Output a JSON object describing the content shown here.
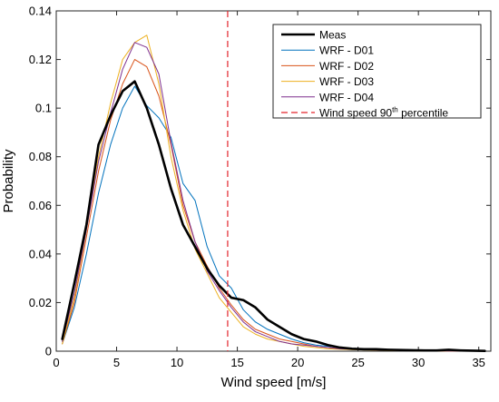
{
  "chart_data": {
    "type": "line",
    "title": "",
    "xlabel": "Wind speed [m/s]",
    "ylabel": "Probability",
    "xlim": [
      0,
      36
    ],
    "ylim": [
      0,
      0.14
    ],
    "xticks": [
      0,
      5,
      10,
      15,
      20,
      25,
      30,
      35
    ],
    "yticks": [
      0,
      0.02,
      0.04,
      0.06,
      0.08,
      0.1,
      0.12,
      0.14
    ],
    "xtick_labels": [
      "0",
      "5",
      "10",
      "15",
      "20",
      "25",
      "30",
      "35"
    ],
    "ytick_labels": [
      "0",
      "0.02",
      "0.04",
      "0.06",
      "0.08",
      "0.1",
      "0.12",
      "0.14"
    ],
    "grid": false,
    "legend_position": "top-right",
    "series": [
      {
        "name": "Meas",
        "color": "#000000",
        "style": "solid",
        "width": "thick",
        "x": [
          0.5,
          1.5,
          2.5,
          3.5,
          4.5,
          5.5,
          6.5,
          7.5,
          8.5,
          9.5,
          10.5,
          11.5,
          12.5,
          13.5,
          14.5,
          15.5,
          16.5,
          17.5,
          18.5,
          19.5,
          20.5,
          21.5,
          22.5,
          23.5,
          24.5,
          25.5,
          26.5,
          27.5,
          28.5,
          29.5,
          30.5,
          31.5,
          32.5,
          33.5,
          34.5,
          35.5
        ],
        "values": [
          0.005,
          0.028,
          0.052,
          0.085,
          0.097,
          0.107,
          0.111,
          0.1,
          0.085,
          0.067,
          0.052,
          0.043,
          0.034,
          0.027,
          0.022,
          0.021,
          0.018,
          0.013,
          0.01,
          0.007,
          0.005,
          0.004,
          0.0025,
          0.0015,
          0.001,
          0.0008,
          0.0008,
          0.0006,
          0.0005,
          0.0004,
          0.0003,
          0.0003,
          0.0006,
          0.0003,
          0.0002,
          0.0001
        ]
      },
      {
        "name": "WRF - D01",
        "color": "#0072BD",
        "style": "solid",
        "width": "thin",
        "x": [
          0.5,
          1.5,
          2.5,
          3.5,
          4.5,
          5.5,
          6.5,
          7.5,
          8.5,
          9.5,
          10.5,
          11.5,
          12.5,
          13.5,
          14.5,
          15.5,
          16.5,
          17.5,
          18.5,
          19.5,
          20.5,
          21.5,
          22.5,
          23.5,
          24.5,
          25.5,
          26.5,
          27.5,
          28.5,
          29.5,
          30.5,
          31.5,
          32.5,
          33.5,
          34.5,
          35.5
        ],
        "values": [
          0.003,
          0.018,
          0.04,
          0.065,
          0.085,
          0.1,
          0.109,
          0.101,
          0.096,
          0.088,
          0.069,
          0.062,
          0.043,
          0.031,
          0.026,
          0.017,
          0.012,
          0.009,
          0.007,
          0.005,
          0.0035,
          0.0025,
          0.002,
          0.0015,
          0.001,
          0.0008,
          0.0006,
          0.0005,
          0.0004,
          0.0003,
          0.0003,
          0.0002,
          0.0002,
          0.0002,
          0.0001,
          0.0001
        ]
      },
      {
        "name": "WRF - D02",
        "color": "#D95319",
        "style": "solid",
        "width": "thin",
        "x": [
          0.5,
          1.5,
          2.5,
          3.5,
          4.5,
          5.5,
          6.5,
          7.5,
          8.5,
          9.5,
          10.5,
          11.5,
          12.5,
          13.5,
          14.5,
          15.5,
          16.5,
          17.5,
          18.5,
          19.5,
          20.5,
          21.5,
          22.5,
          23.5,
          24.5,
          25.5,
          26.5,
          27.5,
          28.5,
          29.5,
          30.5,
          31.5,
          32.5,
          33.5,
          34.5,
          35.5
        ],
        "values": [
          0.003,
          0.02,
          0.047,
          0.074,
          0.095,
          0.11,
          0.12,
          0.117,
          0.105,
          0.085,
          0.06,
          0.045,
          0.035,
          0.026,
          0.019,
          0.013,
          0.009,
          0.007,
          0.005,
          0.004,
          0.003,
          0.002,
          0.0015,
          0.001,
          0.0008,
          0.0006,
          0.0005,
          0.0004,
          0.0003,
          0.0002,
          0.0002,
          0.0002,
          0.0001,
          0.0001,
          0.0001,
          0.0001
        ]
      },
      {
        "name": "WRF - D03",
        "color": "#EDB120",
        "style": "solid",
        "width": "thin",
        "x": [
          0.5,
          1.5,
          2.5,
          3.5,
          4.5,
          5.5,
          6.5,
          7.5,
          8.5,
          9.5,
          10.5,
          11.5,
          12.5,
          13.5,
          14.5,
          15.5,
          16.5,
          17.5,
          18.5,
          19.5,
          20.5,
          21.5,
          22.5,
          23.5,
          24.5,
          25.5,
          26.5,
          27.5,
          28.5,
          29.5,
          30.5,
          31.5,
          32.5,
          33.5,
          34.5,
          35.5
        ],
        "values": [
          0.003,
          0.022,
          0.05,
          0.08,
          0.102,
          0.12,
          0.127,
          0.13,
          0.11,
          0.08,
          0.058,
          0.042,
          0.032,
          0.022,
          0.016,
          0.01,
          0.007,
          0.005,
          0.004,
          0.003,
          0.002,
          0.0015,
          0.001,
          0.0008,
          0.0006,
          0.0005,
          0.0004,
          0.0003,
          0.0002,
          0.0002,
          0.0001,
          0.0001,
          0.0001,
          0.0001,
          0.0001,
          0.0001
        ]
      },
      {
        "name": "WRF - D04",
        "color": "#7E2F8E",
        "style": "solid",
        "width": "thin",
        "x": [
          0.5,
          1.5,
          2.5,
          3.5,
          4.5,
          5.5,
          6.5,
          7.5,
          8.5,
          9.5,
          10.5,
          11.5,
          12.5,
          13.5,
          14.5,
          15.5,
          16.5,
          17.5,
          18.5,
          19.5,
          20.5,
          21.5,
          22.5,
          23.5,
          24.5,
          25.5,
          26.5,
          27.5,
          28.5,
          29.5,
          30.5,
          31.5,
          32.5,
          33.5,
          34.5,
          35.5
        ],
        "values": [
          0.004,
          0.024,
          0.05,
          0.078,
          0.098,
          0.116,
          0.127,
          0.125,
          0.114,
          0.086,
          0.062,
          0.045,
          0.033,
          0.025,
          0.018,
          0.012,
          0.008,
          0.006,
          0.004,
          0.003,
          0.0025,
          0.002,
          0.0015,
          0.001,
          0.0008,
          0.0006,
          0.0005,
          0.0004,
          0.0003,
          0.0002,
          0.0002,
          0.0002,
          0.0001,
          0.0001,
          0.0001,
          0.0001
        ]
      }
    ],
    "reference_lines": [
      {
        "name_prefix": "Wind speed 90",
        "name_superscript": "th",
        "name_suffix": " percentile",
        "orientation": "vertical",
        "x": 14.2,
        "color": "#E3232A",
        "style": "dashed"
      }
    ]
  }
}
